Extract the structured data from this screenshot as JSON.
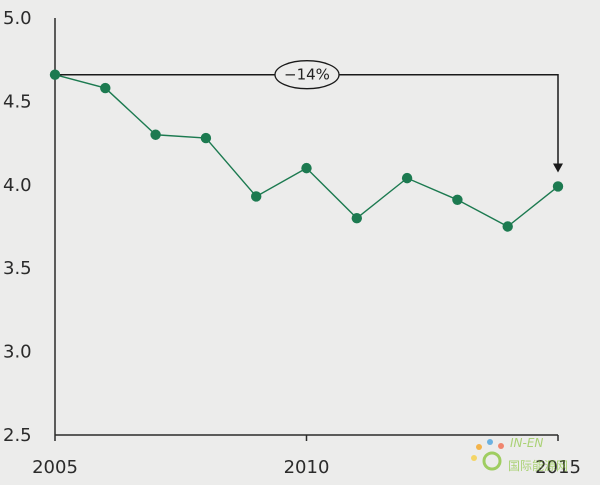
{
  "chart_data": {
    "type": "line",
    "title": "",
    "xlabel": "",
    "ylabel": "",
    "x": [
      2005,
      2006,
      2007,
      2008,
      2009,
      2010,
      2011,
      2012,
      2013,
      2014,
      2015
    ],
    "series": [
      {
        "values": [
          4.66,
          4.58,
          4.3,
          4.28,
          3.93,
          4.1,
          3.8,
          4.04,
          3.91,
          3.75,
          3.99
        ]
      }
    ],
    "xlim": [
      2005,
      2015
    ],
    "ylim": [
      2.5,
      5.0
    ],
    "x_ticks": [
      "2005",
      "2010",
      "2015"
    ],
    "y_ticks": [
      "5.0",
      "4.5",
      "4.0",
      "3.5",
      "3.0",
      "2.5"
    ],
    "grid": false,
    "colors": {
      "series": "#1c7a50",
      "axis": "#2b2b2b"
    },
    "annotation": {
      "text": "−14%",
      "from_x": 2005,
      "to_x": 2015
    }
  },
  "watermark": {
    "text": "国际能源网",
    "tag": "IN-EN"
  }
}
